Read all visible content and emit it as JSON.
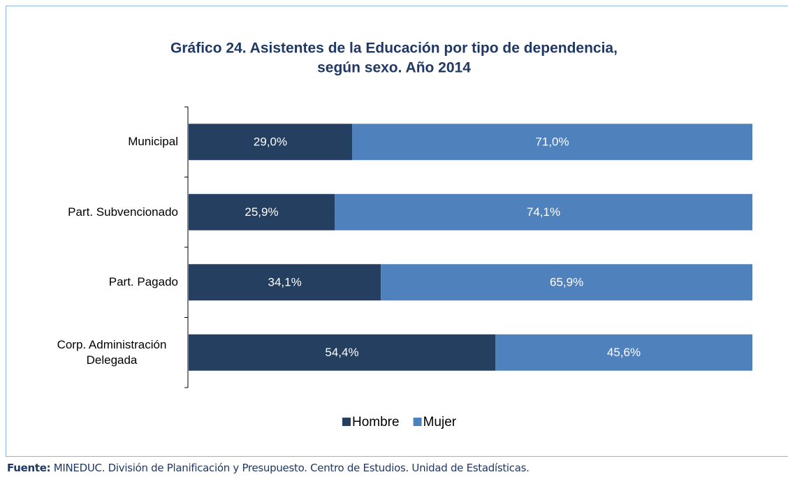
{
  "chart_data": {
    "type": "stacked_bar_horizontal",
    "title": [
      "Gráfico 24. Asistentes de la Educación por tipo de dependencia,",
      "según sexo. Año 2014"
    ],
    "categories": [
      "Municipal",
      "Part. Subvencionado",
      "Part. Pagado",
      "Corp. Administración Delegada"
    ],
    "series": [
      {
        "name": "Hombre",
        "color": "#243f60",
        "values": [
          29.0,
          25.9,
          34.1,
          54.4
        ],
        "value_labels": [
          "29,0%",
          "25,9%",
          "34,1%",
          "54,4%"
        ]
      },
      {
        "name": "Mujer",
        "color": "#4f81bd",
        "values": [
          71.0,
          74.1,
          65.9,
          45.6
        ],
        "value_labels": [
          "71,0%",
          "74,1%",
          "65,9%",
          "45,6%"
        ]
      }
    ],
    "xlim": [
      0,
      100
    ],
    "legend": "bottom"
  },
  "footer": {
    "label": "Fuente:",
    "text": "MINEDUC. División de Planificación y Presupuesto. Centro de Estudios. Unidad de Estadísticas."
  }
}
